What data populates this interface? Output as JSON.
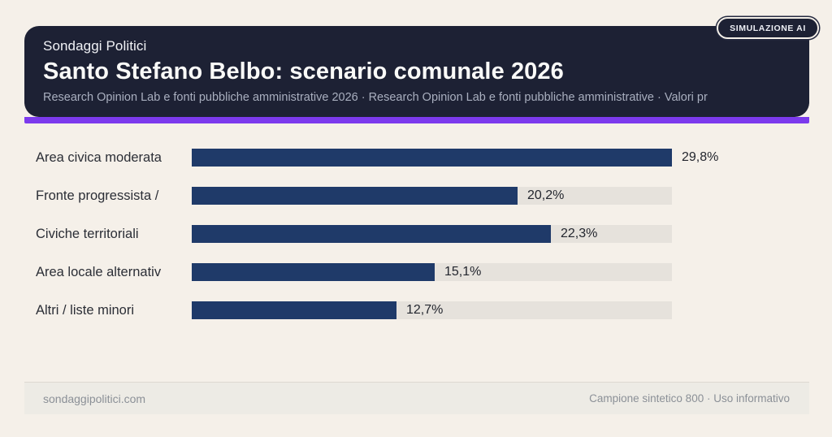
{
  "page": {
    "background": "#f5f0e9"
  },
  "badge": {
    "label": "SIMULAZIONE AI"
  },
  "header": {
    "eyebrow": "Sondaggi Politici",
    "title": "Santo Stefano Belbo: scenario comunale 2026",
    "subtitle": "Research Opinion Lab e fonti pubbliche amministrative 2026 · Research Opinion Lab e fonti pubbliche amministrative · Valori pr",
    "background_color": "#1d2134",
    "accent_color": "#7c3aed"
  },
  "chart_data": {
    "type": "bar",
    "orientation": "horizontal",
    "title": "Santo Stefano Belbo: scenario comunale 2026",
    "categories": [
      "Area civica moderata",
      "Fronte progressista /",
      "Civiche territoriali",
      "Area locale alternativ",
      "Altri / liste minori"
    ],
    "values": [
      29.8,
      20.2,
      22.3,
      15.1,
      12.7
    ],
    "value_labels": [
      "29,8%",
      "20,2%",
      "22,3%",
      "15,1%",
      "12,7%"
    ],
    "unit": "%",
    "xlim": [
      0,
      29.8
    ],
    "scale": "bars scaled relative to max value",
    "bar_color": "#1f3a69",
    "track_color": "#e6e2dc",
    "grid": false,
    "legend": false
  },
  "footer": {
    "left": "sondaggipolitici.com",
    "right": "Campione sintetico 800 · Uso informativo"
  }
}
